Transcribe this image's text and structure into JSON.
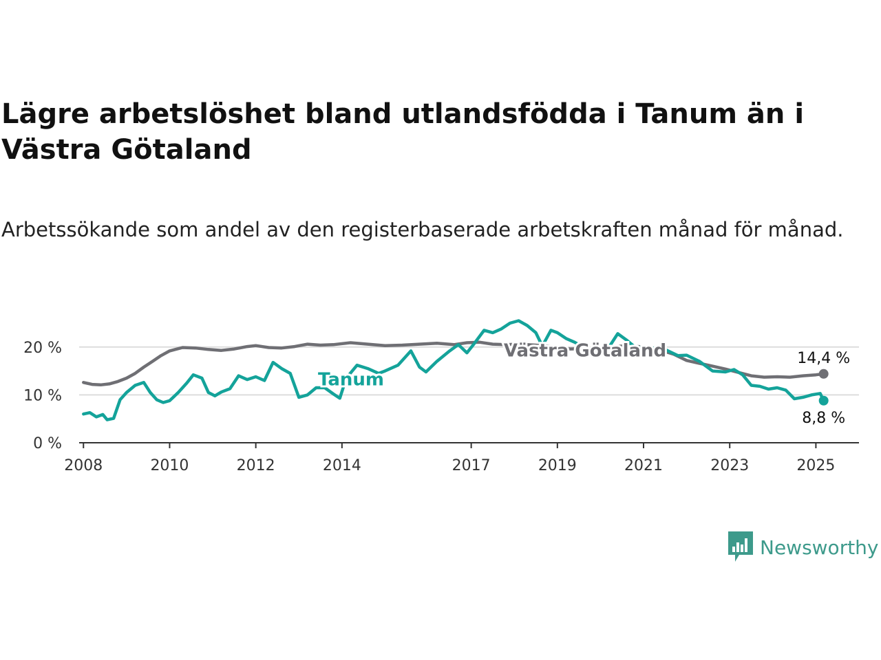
{
  "title": "Lägre arbetslöshet bland utlandsfödda i Tanum än i Västra Götaland",
  "subtitle": "Arbetssökande som andel av den registerbaserade arbetskraften månad för månad.",
  "logo": {
    "text": "Newsworthy",
    "icon": "newsworthy-chart-icon",
    "color": "#3d9a8b"
  },
  "colors": {
    "tanum": "#14a39a",
    "vastra": "#6f6f74",
    "grid": "#dddddd",
    "axis": "#333333"
  },
  "chart_data": {
    "type": "line",
    "title": "Lägre arbetslöshet bland utlandsfödda i Tanum än i Västra Götaland",
    "subtitle": "Arbetssökande som andel av den registerbaserade arbetskraften månad för månad.",
    "xlabel": "",
    "ylabel": "",
    "xlim": [
      2007.9,
      2026.0
    ],
    "ylim": [
      0,
      25
    ],
    "x_ticks": [
      2008,
      2010,
      2012,
      2014,
      2017,
      2019,
      2021,
      2023,
      2025
    ],
    "y_ticks": [
      {
        "value": 0,
        "label": "0 %"
      },
      {
        "value": 10,
        "label": "10 %"
      },
      {
        "value": 20,
        "label": "20 %"
      }
    ],
    "grid": true,
    "series": [
      {
        "name": "Västra Götaland",
        "color": "#6f6f74",
        "end_label": "14,4 %",
        "points": [
          [
            2008.0,
            12.6
          ],
          [
            2008.2,
            12.2
          ],
          [
            2008.4,
            12.1
          ],
          [
            2008.6,
            12.3
          ],
          [
            2008.8,
            12.8
          ],
          [
            2009.0,
            13.5
          ],
          [
            2009.2,
            14.5
          ],
          [
            2009.4,
            15.8
          ],
          [
            2009.6,
            17.0
          ],
          [
            2009.8,
            18.2
          ],
          [
            2010.0,
            19.2
          ],
          [
            2010.3,
            19.9
          ],
          [
            2010.6,
            19.8
          ],
          [
            2010.9,
            19.5
          ],
          [
            2011.2,
            19.3
          ],
          [
            2011.5,
            19.6
          ],
          [
            2011.8,
            20.1
          ],
          [
            2012.0,
            20.3
          ],
          [
            2012.3,
            19.9
          ],
          [
            2012.6,
            19.8
          ],
          [
            2012.9,
            20.1
          ],
          [
            2013.2,
            20.6
          ],
          [
            2013.5,
            20.4
          ],
          [
            2013.8,
            20.5
          ],
          [
            2014.2,
            20.9
          ],
          [
            2014.6,
            20.6
          ],
          [
            2015.0,
            20.3
          ],
          [
            2015.4,
            20.4
          ],
          [
            2015.8,
            20.6
          ],
          [
            2016.2,
            20.8
          ],
          [
            2016.6,
            20.5
          ],
          [
            2016.9,
            20.9
          ],
          [
            2017.2,
            21.0
          ],
          [
            2017.5,
            20.6
          ],
          [
            2017.8,
            20.5
          ],
          [
            2018.1,
            20.6
          ],
          [
            2018.5,
            20.4
          ],
          [
            2018.9,
            20.1
          ],
          [
            2019.3,
            19.6
          ],
          [
            2019.7,
            19.7
          ],
          [
            2020.1,
            19.9
          ],
          [
            2020.5,
            20.2
          ],
          [
            2020.9,
            20.1
          ],
          [
            2021.3,
            19.6
          ],
          [
            2021.7,
            18.5
          ],
          [
            2022.0,
            17.2
          ],
          [
            2022.3,
            16.6
          ],
          [
            2022.6,
            16.0
          ],
          [
            2022.9,
            15.4
          ],
          [
            2023.2,
            14.7
          ],
          [
            2023.5,
            14.0
          ],
          [
            2023.8,
            13.7
          ],
          [
            2024.1,
            13.8
          ],
          [
            2024.4,
            13.7
          ],
          [
            2024.7,
            14.0
          ],
          [
            2025.0,
            14.2
          ],
          [
            2025.18,
            14.4
          ]
        ]
      },
      {
        "name": "Tanum",
        "color": "#14a39a",
        "end_label": "8,8 %",
        "points": [
          [
            2008.0,
            6.0
          ],
          [
            2008.15,
            6.3
          ],
          [
            2008.3,
            5.4
          ],
          [
            2008.45,
            5.9
          ],
          [
            2008.55,
            4.8
          ],
          [
            2008.7,
            5.1
          ],
          [
            2008.85,
            9.0
          ],
          [
            2009.0,
            10.5
          ],
          [
            2009.2,
            12.0
          ],
          [
            2009.4,
            12.6
          ],
          [
            2009.55,
            10.5
          ],
          [
            2009.7,
            9.0
          ],
          [
            2009.85,
            8.4
          ],
          [
            2010.0,
            8.8
          ],
          [
            2010.2,
            10.5
          ],
          [
            2010.4,
            12.5
          ],
          [
            2010.55,
            14.2
          ],
          [
            2010.75,
            13.5
          ],
          [
            2010.9,
            10.5
          ],
          [
            2011.05,
            9.8
          ],
          [
            2011.2,
            10.6
          ],
          [
            2011.4,
            11.3
          ],
          [
            2011.6,
            14.0
          ],
          [
            2011.8,
            13.2
          ],
          [
            2012.0,
            13.8
          ],
          [
            2012.2,
            13.0
          ],
          [
            2012.4,
            16.8
          ],
          [
            2012.6,
            15.5
          ],
          [
            2012.8,
            14.5
          ],
          [
            2013.0,
            9.5
          ],
          [
            2013.2,
            10.0
          ],
          [
            2013.4,
            11.5
          ],
          [
            2013.6,
            11.5
          ],
          [
            2013.8,
            10.2
          ],
          [
            2013.95,
            9.3
          ],
          [
            2014.1,
            13.5
          ],
          [
            2014.35,
            16.2
          ],
          [
            2014.6,
            15.5
          ],
          [
            2014.85,
            14.5
          ],
          [
            2015.0,
            15.0
          ],
          [
            2015.3,
            16.2
          ],
          [
            2015.6,
            19.2
          ],
          [
            2015.8,
            15.8
          ],
          [
            2015.95,
            14.8
          ],
          [
            2016.2,
            17.0
          ],
          [
            2016.5,
            19.2
          ],
          [
            2016.7,
            20.5
          ],
          [
            2016.9,
            18.8
          ],
          [
            2017.05,
            20.5
          ],
          [
            2017.3,
            23.5
          ],
          [
            2017.5,
            23.0
          ],
          [
            2017.7,
            23.8
          ],
          [
            2017.9,
            25.0
          ],
          [
            2018.1,
            25.5
          ],
          [
            2018.3,
            24.5
          ],
          [
            2018.5,
            23.0
          ],
          [
            2018.65,
            20.2
          ],
          [
            2018.85,
            23.5
          ],
          [
            2019.0,
            23.0
          ],
          [
            2019.2,
            21.8
          ],
          [
            2019.4,
            21.0
          ],
          [
            2019.6,
            20.0
          ],
          [
            2019.8,
            19.5
          ],
          [
            2020.0,
            19.2
          ],
          [
            2020.2,
            20.0
          ],
          [
            2020.4,
            22.8
          ],
          [
            2020.6,
            21.5
          ],
          [
            2020.8,
            20.0
          ],
          [
            2021.0,
            19.8
          ],
          [
            2021.2,
            19.8
          ],
          [
            2021.5,
            19.5
          ],
          [
            2021.8,
            18.2
          ],
          [
            2022.0,
            18.3
          ],
          [
            2022.3,
            17.0
          ],
          [
            2022.6,
            15.0
          ],
          [
            2022.9,
            14.8
          ],
          [
            2023.1,
            15.3
          ],
          [
            2023.3,
            14.2
          ],
          [
            2023.5,
            12.0
          ],
          [
            2023.7,
            11.8
          ],
          [
            2023.9,
            11.2
          ],
          [
            2024.1,
            11.5
          ],
          [
            2024.3,
            11.0
          ],
          [
            2024.5,
            9.2
          ],
          [
            2024.7,
            9.5
          ],
          [
            2024.9,
            10.0
          ],
          [
            2025.1,
            10.3
          ],
          [
            2025.18,
            8.8
          ]
        ]
      }
    ]
  }
}
